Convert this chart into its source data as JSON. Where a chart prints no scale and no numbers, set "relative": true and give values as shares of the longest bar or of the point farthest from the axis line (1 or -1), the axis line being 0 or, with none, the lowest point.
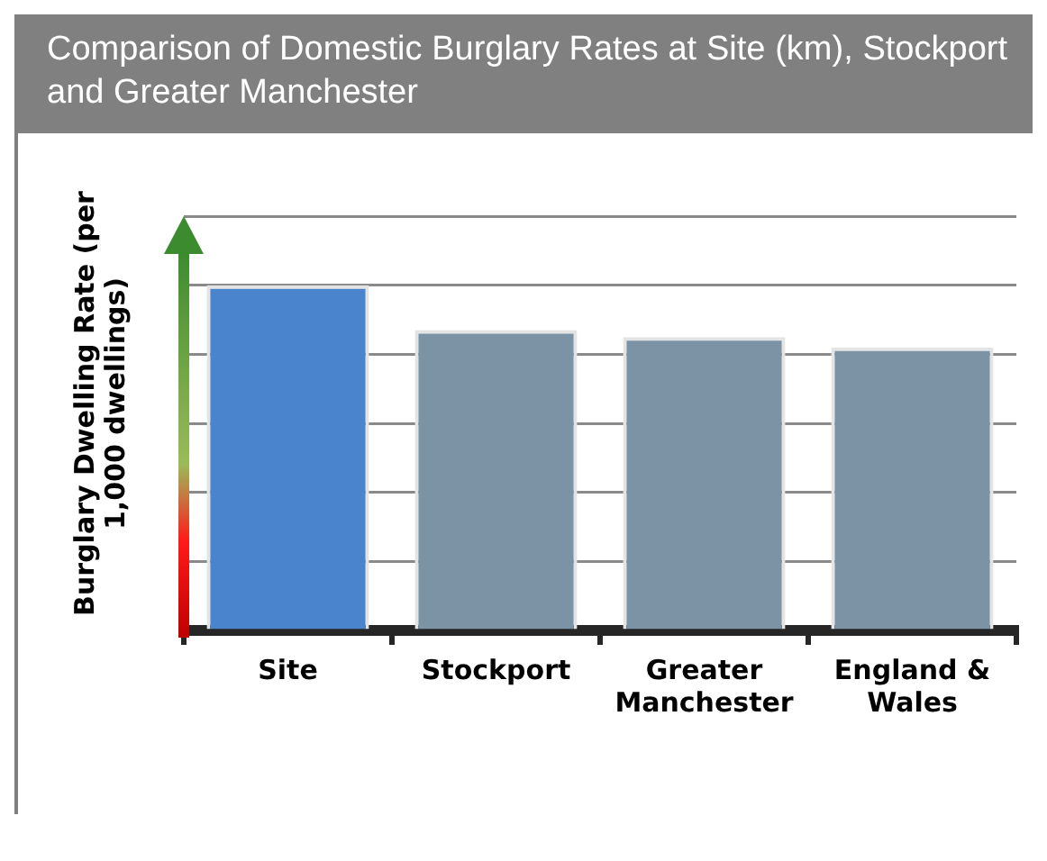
{
  "chart_data": {
    "type": "bar",
    "title": "Comparison of Domestic Burglary Rates at Site (km), Stockport and Greater Manchester",
    "ylabel": "Burglary Dwelling Rate (per 1,000 dwellings)",
    "categories": [
      "Site",
      "Stockport",
      "Greater Manchester",
      "England & Wales"
    ],
    "values": [
      1,
      0.87,
      0.85,
      0.82
    ],
    "colors": [
      "#4a84cc",
      "#7b93a5",
      "#7b93a5",
      "#7b93a5"
    ],
    "relative": true,
    "grid": "y",
    "legend": false
  }
}
